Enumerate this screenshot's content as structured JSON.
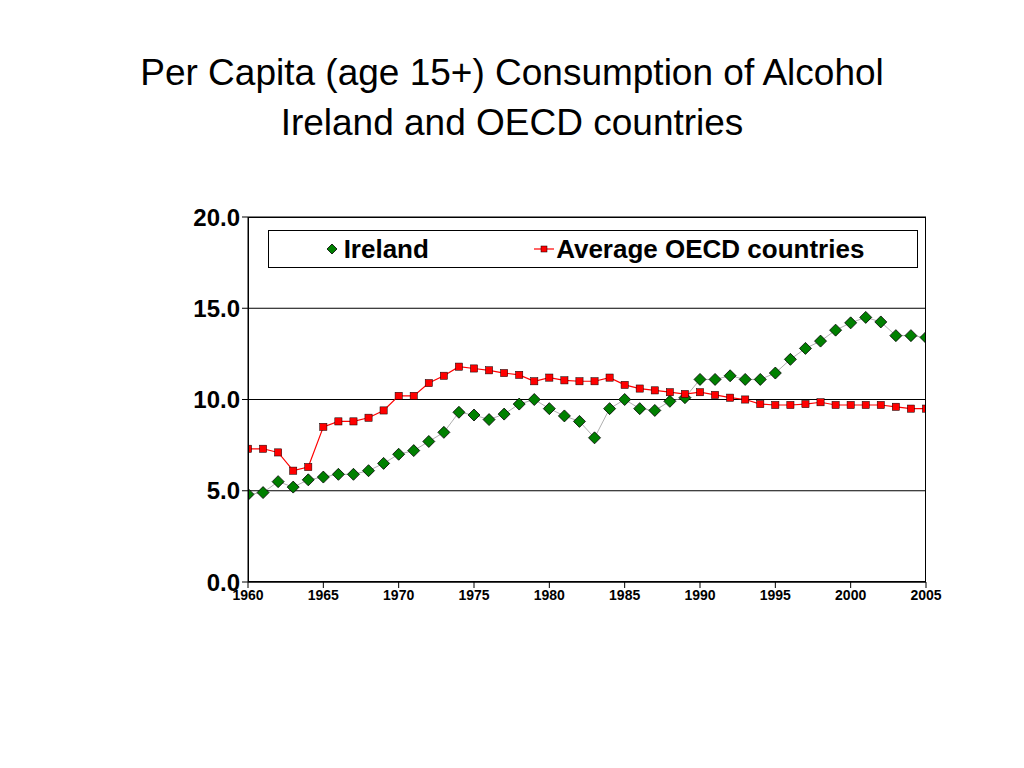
{
  "chart_data": {
    "type": "line",
    "title": "Per Capita (age 15+)  Consumption of Alcohol Ireland and OECD countries",
    "x": [
      1960,
      1961,
      1962,
      1963,
      1964,
      1965,
      1966,
      1967,
      1968,
      1969,
      1970,
      1971,
      1972,
      1973,
      1974,
      1975,
      1976,
      1977,
      1978,
      1979,
      1980,
      1981,
      1982,
      1983,
      1984,
      1985,
      1986,
      1987,
      1988,
      1989,
      1990,
      1991,
      1992,
      1993,
      1994,
      1995,
      1996,
      1997,
      1998,
      1999,
      2000,
      2001,
      2002,
      2003,
      2004,
      2005
    ],
    "series": [
      {
        "name": "Ireland",
        "color": "#008000",
        "marker": "diamond",
        "values": [
          4.8,
          4.9,
          5.5,
          5.2,
          5.6,
          5.75,
          5.9,
          5.9,
          6.1,
          6.5,
          7.0,
          7.2,
          7.7,
          8.2,
          9.3,
          9.15,
          8.9,
          9.2,
          9.75,
          10.0,
          9.5,
          9.1,
          8.8,
          7.9,
          9.5,
          10.0,
          9.5,
          9.4,
          9.9,
          10.1,
          11.1,
          11.1,
          11.3,
          11.1,
          11.1,
          11.45,
          12.2,
          12.8,
          13.2,
          13.8,
          14.2,
          14.5,
          14.25,
          13.5,
          13.5,
          13.4
        ]
      },
      {
        "name": "Average OECD countries",
        "color": "#ff0000",
        "marker": "square",
        "values": [
          7.3,
          7.3,
          7.1,
          6.1,
          6.3,
          8.5,
          8.8,
          8.8,
          9.0,
          9.4,
          10.2,
          10.2,
          10.9,
          11.3,
          11.8,
          11.7,
          11.6,
          11.45,
          11.35,
          11.0,
          11.2,
          11.05,
          11.0,
          11.0,
          11.2,
          10.8,
          10.6,
          10.5,
          10.4,
          10.3,
          10.4,
          10.25,
          10.1,
          10.0,
          9.75,
          9.7,
          9.7,
          9.75,
          9.85,
          9.7,
          9.7,
          9.7,
          9.7,
          9.6,
          9.5,
          9.5
        ]
      }
    ],
    "xlim": [
      1960,
      2005
    ],
    "xticks": [
      1960,
      1965,
      1970,
      1975,
      1980,
      1985,
      1990,
      1995,
      2000,
      2005
    ],
    "ylim": [
      0,
      20
    ],
    "yticks": [
      {
        "value": 0,
        "label": "0.0"
      },
      {
        "value": 5,
        "label": "5.0"
      },
      {
        "value": 10,
        "label": "10.0"
      },
      {
        "value": 15,
        "label": "15.0"
      },
      {
        "value": 20,
        "label": "20.0"
      }
    ],
    "grid": true,
    "legend": "top"
  }
}
